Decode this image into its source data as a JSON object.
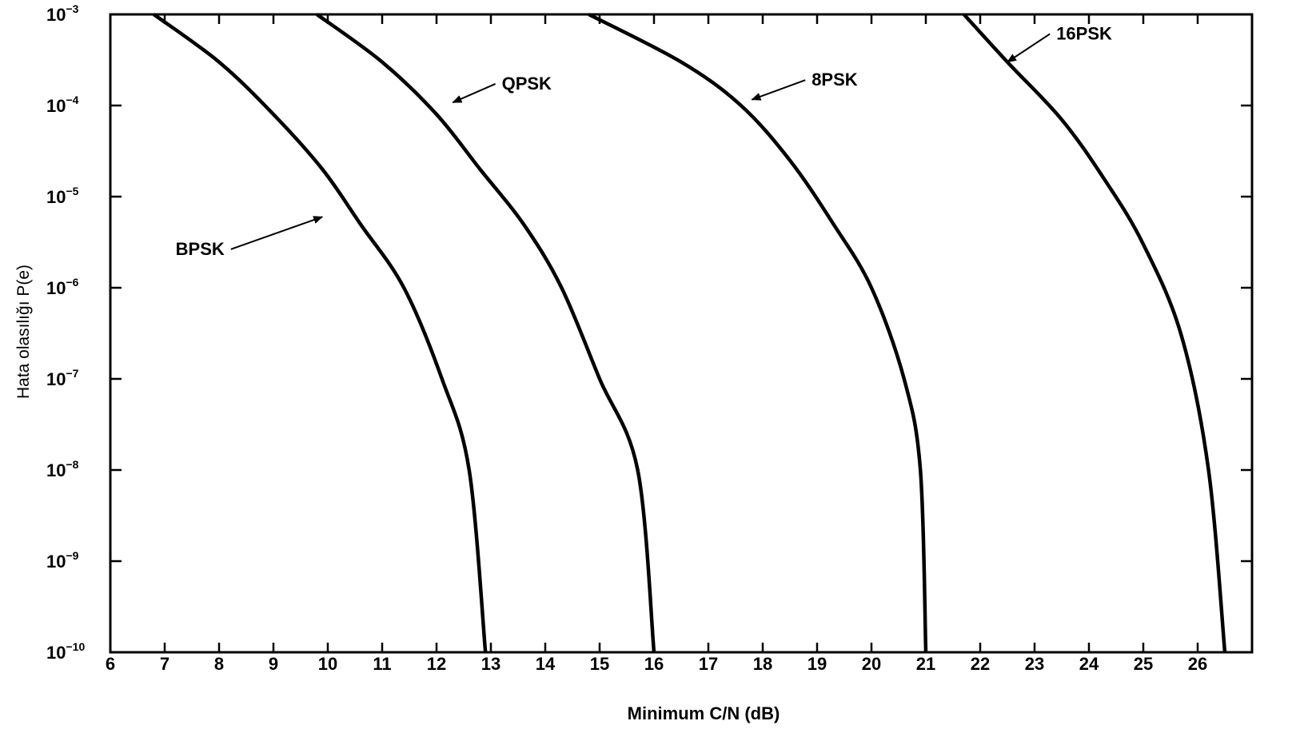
{
  "chart_data": {
    "type": "line",
    "xlabel": "Minimum C/N (dB)",
    "ylabel": "Hata olasılığı P(e)",
    "xlim": [
      6,
      27
    ],
    "y_scale": "log",
    "ylim_exponent": [
      -10,
      -3
    ],
    "x_ticks": [
      "6",
      "7",
      "8",
      "9",
      "10",
      "11",
      "12",
      "13",
      "14",
      "15",
      "16",
      "17",
      "18",
      "19",
      "20",
      "21",
      "22",
      "23",
      "24",
      "25",
      "26"
    ],
    "y_ticks": [
      {
        "base": "10",
        "exp": "−3"
      },
      {
        "base": "10",
        "exp": "−4"
      },
      {
        "base": "10",
        "exp": "−5"
      },
      {
        "base": "10",
        "exp": "−6"
      },
      {
        "base": "10",
        "exp": "−7"
      },
      {
        "base": "10",
        "exp": "−8"
      },
      {
        "base": "10",
        "exp": "−9"
      },
      {
        "base": "10",
        "exp": "−10"
      }
    ],
    "series": [
      {
        "name": "BPSK",
        "color": "#000000",
        "x": [
          6.8,
          8.0,
          9.0,
          9.9,
          10.6,
          11.4,
          12.1,
          12.6,
          12.9
        ],
        "y": [
          0.001,
          0.0003,
          8e-05,
          2e-05,
          5e-06,
          1e-06,
          1e-07,
          1e-08,
          1e-10
        ]
      },
      {
        "name": "QPSK",
        "color": "#000000",
        "x": [
          9.8,
          11.0,
          12.0,
          12.8,
          13.6,
          14.3,
          15.0,
          15.7,
          16.0
        ],
        "y": [
          0.001,
          0.0003,
          8e-05,
          2e-05,
          5e-06,
          1e-06,
          1e-07,
          1e-08,
          1e-10
        ]
      },
      {
        "name": "8PSK",
        "color": "#000000",
        "x": [
          14.8,
          16.5,
          17.6,
          18.5,
          19.3,
          20.0,
          20.6,
          20.9,
          21.0
        ],
        "y": [
          0.001,
          0.0003,
          0.0001,
          2.5e-05,
          5e-06,
          1e-06,
          1e-07,
          1e-08,
          1e-10
        ]
      },
      {
        "name": "16PSK",
        "color": "#000000",
        "x": [
          21.7,
          22.5,
          23.5,
          24.3,
          25.0,
          25.7,
          26.2,
          26.5
        ],
        "y": [
          0.001,
          0.0003,
          7e-05,
          1.5e-05,
          3e-06,
          3e-07,
          1e-08,
          1e-10
        ]
      }
    ],
    "annotations": [
      {
        "text": "BPSK",
        "x": 8.1,
        "y": 2.3e-06,
        "arrow_to": {
          "x": 9.9,
          "y": 6e-06
        }
      },
      {
        "text": "QPSK",
        "x": 13.2,
        "y": 0.00015,
        "arrow_to": {
          "x": 12.3,
          "y": 0.000108
        }
      },
      {
        "text": "8PSK",
        "x": 18.9,
        "y": 0.000165,
        "arrow_to": {
          "x": 17.8,
          "y": 0.000116
        }
      },
      {
        "text": "16PSK",
        "x": 23.4,
        "y": 0.00053,
        "arrow_to": {
          "x": 22.5,
          "y": 0.0003
        }
      }
    ]
  }
}
